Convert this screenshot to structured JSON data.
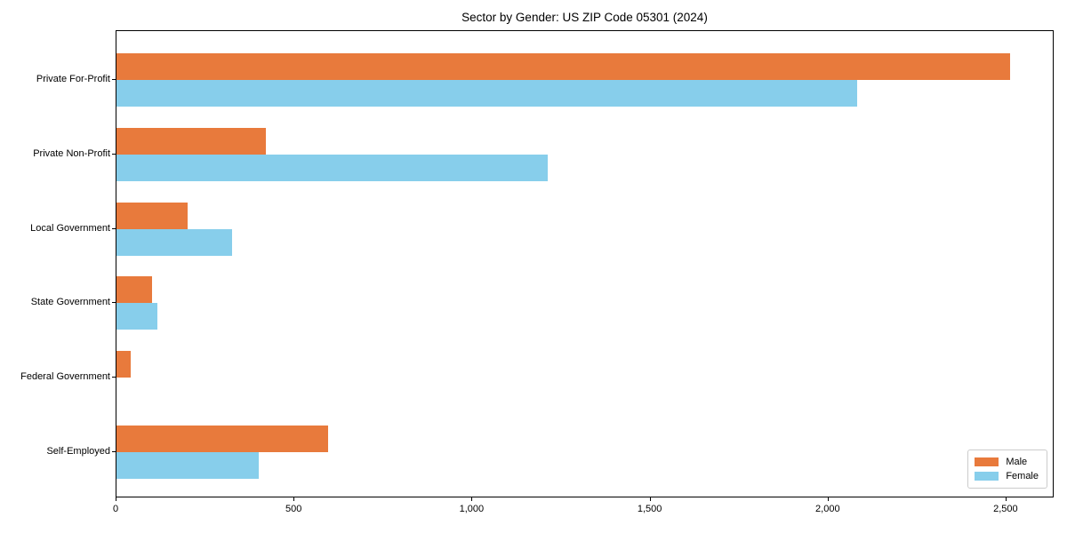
{
  "chart_data": {
    "type": "bar",
    "orientation": "horizontal",
    "title": "Sector by Gender: US ZIP Code 05301 (2024)",
    "categories": [
      "Private For-Profit",
      "Private Non-Profit",
      "Local Government",
      "State Government",
      "Federal Government",
      "Self-Employed"
    ],
    "series": [
      {
        "name": "Male",
        "color": "#E87A3C",
        "values": [
          2510,
          420,
          200,
          100,
          40,
          595
        ]
      },
      {
        "name": "Female",
        "color": "#87CEEB",
        "values": [
          2080,
          1210,
          325,
          115,
          0,
          400
        ]
      }
    ],
    "xlabel": "",
    "ylabel": "",
    "xlim": [
      0,
      2635
    ],
    "xticks": {
      "values": [
        0,
        500,
        1000,
        1500,
        2000,
        2500
      ],
      "labels": [
        "0",
        "500",
        "1,000",
        "1,500",
        "2,000",
        "2,500"
      ]
    },
    "grid": false,
    "legend": {
      "position": "lower-right",
      "entries": [
        "Male",
        "Female"
      ]
    }
  }
}
